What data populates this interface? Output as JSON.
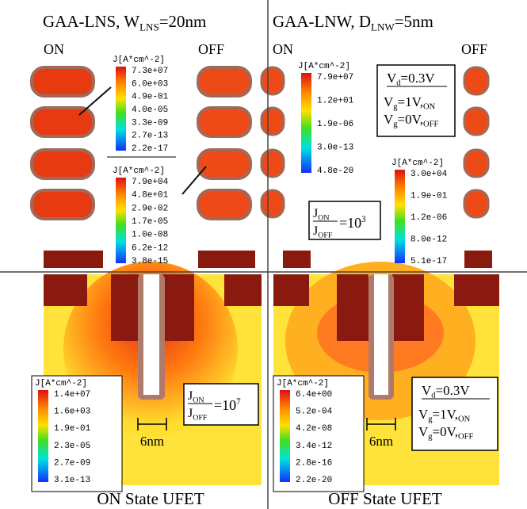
{
  "top_left": {
    "title": {
      "main": "GAA-LNS, W",
      "sub": "LNS",
      "tail": "=20nm"
    },
    "on_label": "ON",
    "off_label": "OFF",
    "legends": [
      {
        "title": "J[A*cm^-2]",
        "labels": [
          "7.3e+07",
          "6.0e+03",
          "4.9e-01",
          "4.0e-05",
          "3.3e-09",
          "2.7e-13",
          "2.2e-17"
        ]
      },
      {
        "title": "J[A*cm^-2]",
        "labels": [
          "7.9e+04",
          "4.8e+01",
          "2.9e-02",
          "1.7e-05",
          "1.0e-08",
          "6.2e-12",
          "3.8e-15"
        ]
      }
    ]
  },
  "top_right": {
    "title": {
      "main": "GAA-LNW, D",
      "sub": "LNW",
      "tail": "=5nm"
    },
    "on_label": "ON",
    "off_label": "OFF",
    "legends": [
      {
        "title": "J[A*cm^-2]",
        "labels": [
          "7.9e+07",
          "1.2e+01",
          "1.9e-06",
          "3.0e-13",
          "4.8e-20"
        ]
      },
      {
        "title": "J[A*cm^-2]",
        "labels": [
          "3.0e+04",
          "1.9e-01",
          "1.2e-06",
          "8.0e-12",
          "5.1e-17"
        ]
      }
    ],
    "bias": {
      "vd": {
        "main": "V",
        "sub": "d",
        "tail": "=0.3V"
      },
      "vg_on": {
        "main": "V",
        "sub": "g",
        "tail": "=1V,",
        "sub2": "ON"
      },
      "vg_off": {
        "main": "V",
        "sub": "g",
        "tail": "=0V,",
        "sub2": "OFF"
      }
    },
    "ratio": {
      "num": "J",
      "num_sub": "ON",
      "den": "J",
      "den_sub": "OFF",
      "tail": "=10",
      "exp": "3"
    }
  },
  "bottom_left": {
    "legend": {
      "title": "J[A*cm^-2]",
      "labels": [
        "1.4e+07",
        "1.6e+03",
        "1.9e-01",
        "2.3e-05",
        "2.7e-09",
        "3.1e-13"
      ]
    },
    "ratio": {
      "num": "J",
      "num_sub": "ON",
      "den": "J",
      "den_sub": "OFF",
      "tail": "=10",
      "exp": "7"
    },
    "dimension": "6nm",
    "caption": "ON State UFET"
  },
  "bottom_right": {
    "legend": {
      "title": "J[A*cm^-2]",
      "labels": [
        "6.4e+00",
        "5.2e-04",
        "4.2e-08",
        "3.4e-12",
        "2.8e-16",
        "2.2e-20"
      ]
    },
    "bias": {
      "vd": {
        "main": "V",
        "sub": "d",
        "tail": "=0.3V"
      },
      "vg_on": {
        "main": "V",
        "sub": "g",
        "tail": "=1V,",
        "sub2": "ON"
      },
      "vg_off": {
        "main": "V",
        "sub": "g",
        "tail": "=0V,",
        "sub2": "OFF"
      }
    },
    "dimension": "6nm",
    "caption": "OFF State UFET"
  }
}
